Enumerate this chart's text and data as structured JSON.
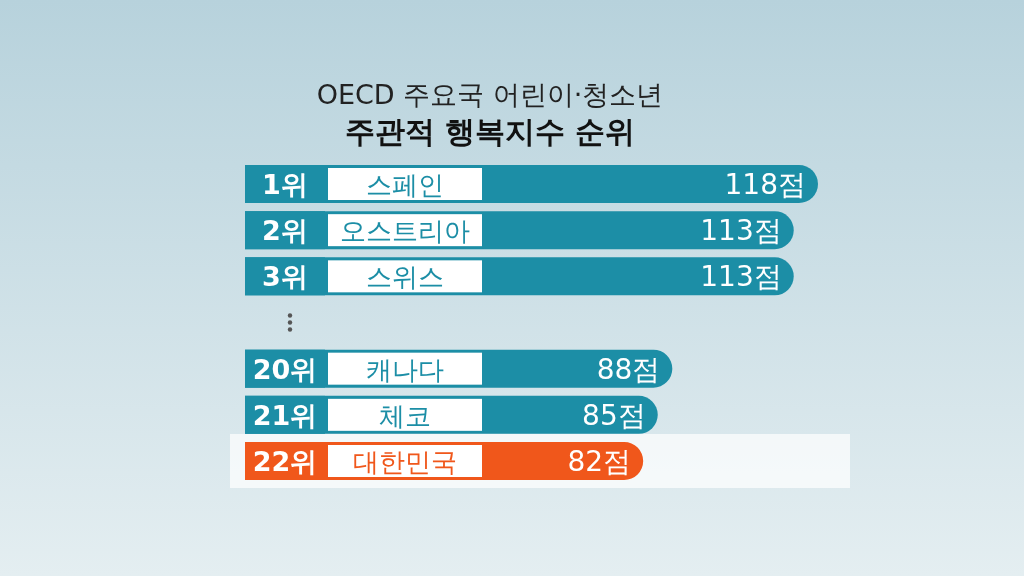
{
  "chart_data": {
    "type": "bar",
    "orientation": "horizontal",
    "title": "OECD 주요국 어린이·청소년",
    "subtitle": "주관적 행복지수 순위",
    "categories": [
      "스페인",
      "오스트리아",
      "스위스",
      null,
      "캐나다",
      "체코",
      "대한민국"
    ],
    "values": [
      118,
      113,
      113,
      null,
      88,
      85,
      82
    ],
    "value_labels": [
      "118점",
      "113점",
      "113점",
      null,
      "88점",
      "85점",
      "82점"
    ],
    "colors": [
      "#1c8ea6",
      "#1c8ea6",
      "#1c8ea6",
      null,
      "#1c8ea6",
      "#1c8ea6",
      "#f0571b"
    ],
    "annotations": [
      "1위",
      "2위",
      "3위",
      "20위",
      "21위",
      "22위"
    ]
  }
}
